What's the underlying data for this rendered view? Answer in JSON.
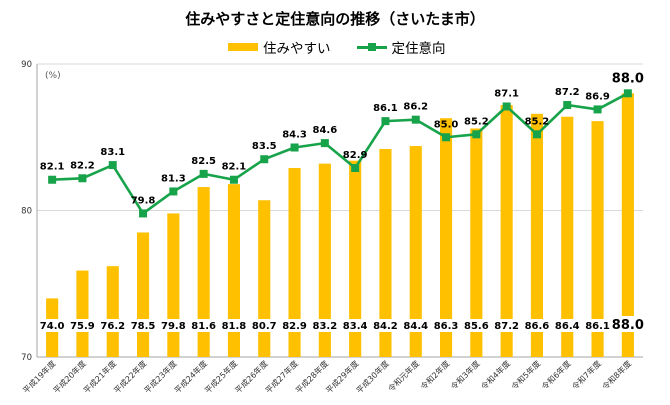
{
  "title": "住みやすさと定住意向の推移（さいたま市）",
  "colors": {
    "bar": "#FFC000",
    "line": "#17A34A",
    "grid": "#D9D9D9",
    "axis": "#A6A6A6"
  },
  "legend": [
    {
      "label": "住みやすい",
      "kind": "bar"
    },
    {
      "label": "定住意向",
      "kind": "line"
    }
  ],
  "chart_data": {
    "type": "bar+line",
    "unit_label": "(%)",
    "ylim": [
      70,
      90
    ],
    "yticks": [
      70,
      80,
      90
    ],
    "grid": true,
    "legend_position": "top",
    "categories": [
      "平成19年度",
      "平成20年度",
      "平成21年度",
      "平成22年度",
      "平成23年度",
      "平成24年度",
      "平成25年度",
      "平成26年度",
      "平成27年度",
      "平成28年度",
      "平成29年度",
      "平成30年度",
      "令和元年度",
      "令和2年度",
      "令和3年度",
      "令和4年度",
      "令和5年度",
      "令和6年度",
      "令和7年度",
      "令和8年度"
    ],
    "series": [
      {
        "name": "住みやすい",
        "type": "bar",
        "values": [
          74.0,
          75.9,
          76.2,
          78.5,
          79.8,
          81.6,
          81.8,
          80.7,
          82.9,
          83.2,
          83.4,
          84.2,
          84.4,
          86.3,
          85.6,
          87.2,
          86.6,
          86.4,
          86.1,
          88.0
        ]
      },
      {
        "name": "定住意向",
        "type": "line",
        "values": [
          82.1,
          82.2,
          83.1,
          79.8,
          81.3,
          82.5,
          82.1,
          83.5,
          84.3,
          84.6,
          82.9,
          86.1,
          86.2,
          85.0,
          85.2,
          87.1,
          85.2,
          87.2,
          86.9,
          88.0
        ]
      }
    ]
  }
}
